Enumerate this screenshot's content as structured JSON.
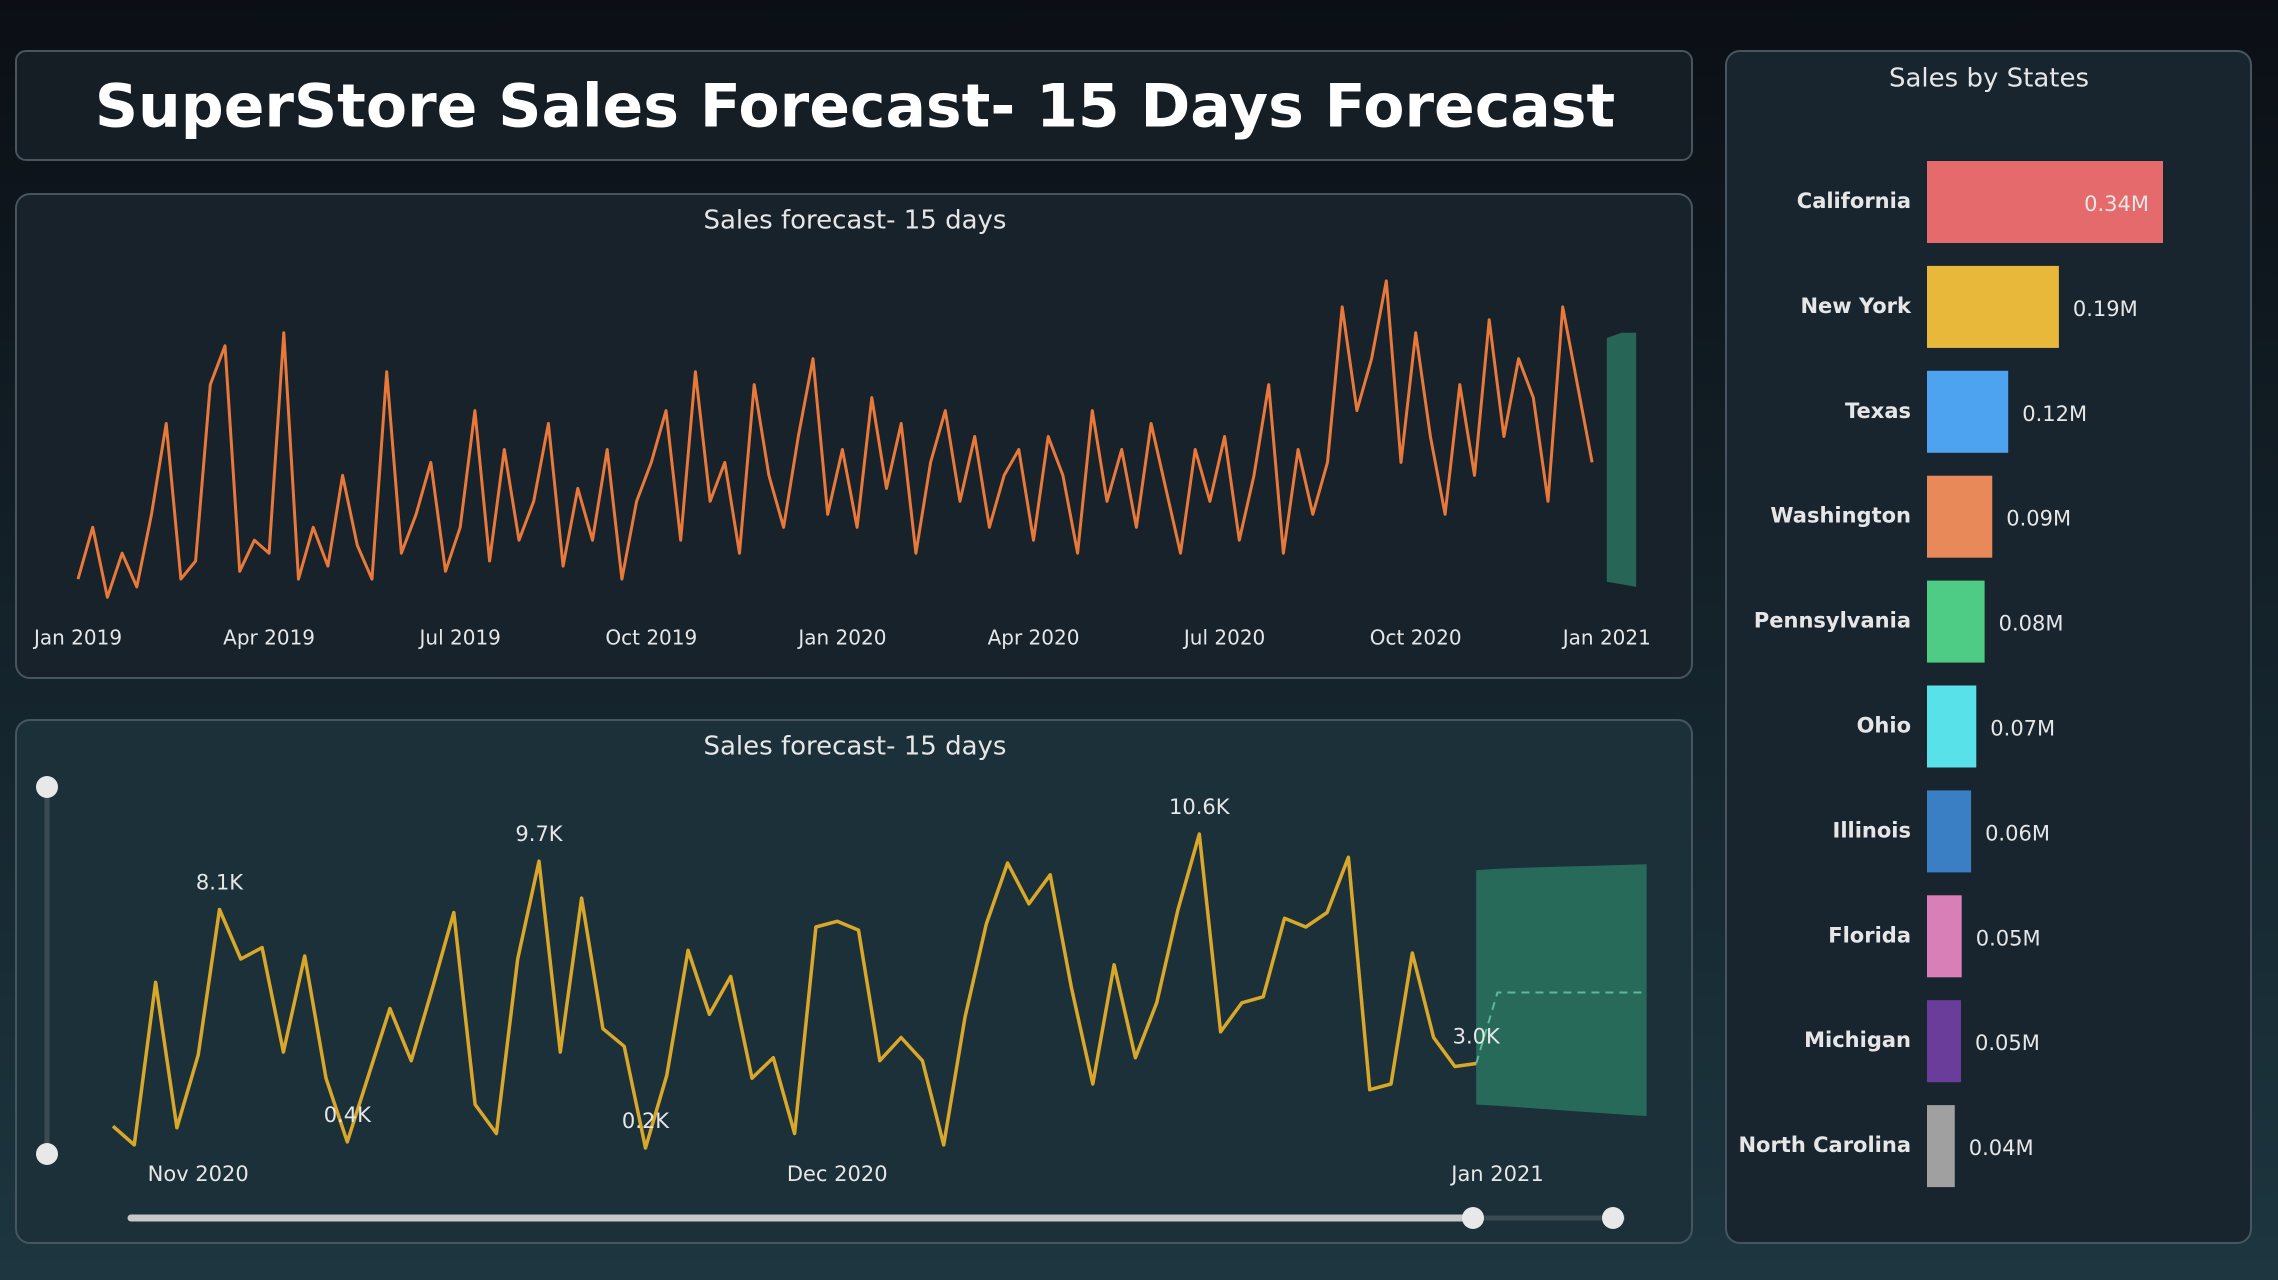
{
  "title": "SuperStore Sales Forecast- 15 Days Forecast",
  "chart_data": [
    {
      "type": "line",
      "title": "Sales forecast- 15 days",
      "categories": [
        "Jan 2019",
        null,
        null,
        null,
        null,
        null,
        null,
        null,
        null,
        null,
        null,
        null,
        null,
        "Apr 2019",
        null,
        null,
        null,
        null,
        null,
        null,
        null,
        null,
        null,
        null,
        null,
        null,
        "Jul 2019",
        null,
        null,
        null,
        null,
        null,
        null,
        null,
        null,
        null,
        null,
        null,
        null,
        "Oct 2019",
        null,
        null,
        null,
        null,
        null,
        null,
        null,
        null,
        null,
        null,
        null,
        null,
        "Jan 2020",
        null,
        null,
        null,
        null,
        null,
        null,
        null,
        null,
        null,
        null,
        null,
        null,
        "Apr 2020",
        null,
        null,
        null,
        null,
        null,
        null,
        null,
        null,
        null,
        null,
        null,
        null,
        "Jul 2020",
        null,
        null,
        null,
        null,
        null,
        null,
        null,
        null,
        null,
        null,
        null,
        null,
        "Oct 2020",
        null,
        null,
        null,
        null,
        null,
        null,
        null,
        null,
        null,
        null,
        null,
        null,
        "Jan 2021",
        null,
        null
      ],
      "ylim": [
        0,
        14000
      ],
      "series": [
        {
          "color": "#e8793a",
          "values": [
            1500,
            3500,
            800,
            2500,
            1200,
            4000,
            7500,
            1500,
            2200,
            9000,
            10500,
            1800,
            3000,
            2500,
            11000,
            1500,
            3500,
            2000,
            5500,
            2800,
            1500,
            9500,
            2500,
            4000,
            6000,
            1800,
            3500,
            8000,
            2200,
            6500,
            3000,
            4500,
            7500,
            2000,
            5000,
            3000,
            6500,
            1500,
            4500,
            6000,
            8000,
            3000,
            9500,
            4500,
            6000,
            2500,
            9000,
            5500,
            3500,
            7000,
            10000,
            4000,
            6500,
            3500,
            8500,
            5000,
            7500,
            2500,
            6000,
            8000,
            4500,
            7000,
            3500,
            5500,
            6500,
            3000,
            7000,
            5500,
            2500,
            8000,
            4500,
            6500,
            3500,
            7500,
            5000,
            2500,
            6500,
            4500,
            7000,
            3000,
            5500,
            9000,
            2500,
            6500,
            4000,
            6000,
            12000,
            8000,
            10000,
            13000,
            6000,
            11000,
            7000,
            4000,
            9000,
            5500,
            11500,
            7000,
            10000,
            8500,
            4500,
            12000,
            9000,
            6000,
            null,
            null,
            null
          ]
        }
      ],
      "forecast": {
        "color": "#2e7d66",
        "upper": [
          null,
          null,
          null,
          null,
          null,
          null,
          null,
          null,
          null,
          null,
          null,
          null,
          null,
          null,
          null,
          null,
          null,
          null,
          null,
          null,
          null,
          null,
          null,
          null,
          null,
          null,
          null,
          null,
          null,
          null,
          null,
          null,
          null,
          null,
          null,
          null,
          null,
          null,
          null,
          null,
          null,
          null,
          null,
          null,
          null,
          null,
          null,
          null,
          null,
          null,
          null,
          null,
          null,
          null,
          null,
          null,
          null,
          null,
          null,
          null,
          null,
          null,
          null,
          null,
          null,
          null,
          null,
          null,
          null,
          null,
          null,
          null,
          null,
          null,
          null,
          null,
          null,
          null,
          null,
          null,
          null,
          null,
          null,
          null,
          null,
          null,
          null,
          null,
          null,
          null,
          null,
          null,
          null,
          null,
          null,
          null,
          null,
          null,
          null,
          null,
          null,
          null,
          null,
          null,
          10800,
          11000,
          11000
        ],
        "lower": [
          null,
          null,
          null,
          null,
          null,
          null,
          null,
          null,
          null,
          null,
          null,
          null,
          null,
          null,
          null,
          null,
          null,
          null,
          null,
          null,
          null,
          null,
          null,
          null,
          null,
          null,
          null,
          null,
          null,
          null,
          null,
          null,
          null,
          null,
          null,
          null,
          null,
          null,
          null,
          null,
          null,
          null,
          null,
          null,
          null,
          null,
          null,
          null,
          null,
          null,
          null,
          null,
          null,
          null,
          null,
          null,
          null,
          null,
          null,
          null,
          null,
          null,
          null,
          null,
          null,
          null,
          null,
          null,
          null,
          null,
          null,
          null,
          null,
          null,
          null,
          null,
          null,
          null,
          null,
          null,
          null,
          null,
          null,
          null,
          null,
          null,
          null,
          null,
          null,
          null,
          null,
          null,
          null,
          null,
          null,
          null,
          null,
          null,
          null,
          null,
          null,
          null,
          null,
          null,
          1400,
          1300,
          1200
        ]
      }
    },
    {
      "type": "line",
      "title": "Sales forecast- 15 days",
      "categories": [
        null,
        null,
        null,
        null,
        "Nov 2020",
        null,
        null,
        null,
        null,
        null,
        null,
        null,
        null,
        null,
        null,
        null,
        null,
        null,
        null,
        null,
        null,
        null,
        null,
        null,
        null,
        null,
        null,
        null,
        null,
        null,
        null,
        null,
        null,
        null,
        "Dec 2020",
        null,
        null,
        null,
        null,
        null,
        null,
        null,
        null,
        null,
        null,
        null,
        null,
        null,
        null,
        null,
        null,
        null,
        null,
        null,
        null,
        null,
        null,
        null,
        null,
        null,
        null,
        null,
        null,
        null,
        null,
        "Jan 2021",
        null,
        null,
        null,
        null,
        null,
        null,
        null
      ],
      "ylim": [
        0,
        11000
      ],
      "series": [
        {
          "color": "#d9a82a",
          "values": [
            920,
            300,
            5690,
            870,
            3280,
            8100,
            6460,
            6840,
            3380,
            6560,
            2510,
            400,
            2610,
            4820,
            3090,
            5500,
            8000,
            1640,
            680,
            6460,
            9700,
            3380,
            8480,
            4150,
            3570,
            200,
            2610,
            6750,
            4630,
            5880,
            2510,
            3190,
            680,
            7520,
            7710,
            7420,
            3090,
            3860,
            3090,
            300,
            4530,
            7620,
            9640,
            8290,
            9250,
            5500,
            2320,
            6270,
            3190,
            5010,
            8100,
            10600,
            4050,
            5010,
            5210,
            7810,
            7520,
            8000,
            9830,
            2130,
            2320,
            6660,
            3860,
            2900,
            3000,
            null,
            null,
            null,
            null,
            null,
            null,
            null,
            null
          ],
          "value_labels": [
            null,
            null,
            null,
            null,
            null,
            "8.1K",
            null,
            null,
            null,
            null,
            null,
            "0.4K",
            null,
            null,
            null,
            null,
            null,
            null,
            null,
            null,
            "9.7K",
            null,
            null,
            null,
            null,
            "0.2K",
            null,
            null,
            null,
            null,
            null,
            null,
            null,
            null,
            null,
            null,
            null,
            null,
            null,
            null,
            null,
            null,
            null,
            null,
            null,
            null,
            null,
            null,
            null,
            null,
            null,
            "10.6K",
            null,
            null,
            null,
            null,
            null,
            null,
            null,
            null,
            null,
            null,
            null,
            null,
            "3.0K",
            null,
            null,
            null,
            null,
            null,
            null,
            null,
            null
          ]
        }
      ],
      "forecast": {
        "color": "#2e7d66",
        "upper": [
          null,
          null,
          null,
          null,
          null,
          null,
          null,
          null,
          null,
          null,
          null,
          null,
          null,
          null,
          null,
          null,
          null,
          null,
          null,
          null,
          null,
          null,
          null,
          null,
          null,
          null,
          null,
          null,
          null,
          null,
          null,
          null,
          null,
          null,
          null,
          null,
          null,
          null,
          null,
          null,
          null,
          null,
          null,
          null,
          null,
          null,
          null,
          null,
          null,
          null,
          null,
          null,
          null,
          null,
          null,
          null,
          null,
          null,
          null,
          null,
          null,
          null,
          null,
          null,
          9400,
          9450,
          9480,
          9500,
          9520,
          9540,
          9560,
          9580,
          9600
        ],
        "lower": [
          null,
          null,
          null,
          null,
          null,
          null,
          null,
          null,
          null,
          null,
          null,
          null,
          null,
          null,
          null,
          null,
          null,
          null,
          null,
          null,
          null,
          null,
          null,
          null,
          null,
          null,
          null,
          null,
          null,
          null,
          null,
          null,
          null,
          null,
          null,
          null,
          null,
          null,
          null,
          null,
          null,
          null,
          null,
          null,
          null,
          null,
          null,
          null,
          null,
          null,
          null,
          null,
          null,
          null,
          null,
          null,
          null,
          null,
          null,
          null,
          null,
          null,
          null,
          null,
          1640,
          1600,
          1550,
          1500,
          1450,
          1400,
          1350,
          1300,
          1260
        ],
        "values": [
          null,
          null,
          null,
          null,
          null,
          null,
          null,
          null,
          null,
          null,
          null,
          null,
          null,
          null,
          null,
          null,
          null,
          null,
          null,
          null,
          null,
          null,
          null,
          null,
          null,
          null,
          null,
          null,
          null,
          null,
          null,
          null,
          null,
          null,
          null,
          null,
          null,
          null,
          null,
          null,
          null,
          null,
          null,
          null,
          null,
          null,
          null,
          null,
          null,
          null,
          null,
          null,
          null,
          null,
          null,
          null,
          null,
          null,
          null,
          null,
          null,
          null,
          null,
          null,
          3000,
          5350,
          5350,
          5350,
          5350,
          5350,
          5350,
          5350,
          5350
        ]
      }
    },
    {
      "type": "bar",
      "orientation": "horizontal",
      "title": "Sales by States",
      "categories": [
        "California",
        "New York",
        "Texas",
        "Washington",
        "Pennsylvania",
        "Ohio",
        "Illinois",
        "Florida",
        "Michigan",
        "North Carolina"
      ],
      "values": [
        340000,
        190000,
        117000,
        94000,
        83000,
        71000,
        63500,
        50000,
        49000,
        40000
      ],
      "value_labels": [
        "0.34M",
        "0.19M",
        "0.12M",
        "0.09M",
        "0.08M",
        "0.07M",
        "0.06M",
        "0.05M",
        "0.05M",
        "0.04M"
      ],
      "colors": [
        "#e46a6c",
        "#e8b83a",
        "#4da3f0",
        "#e8895a",
        "#4ecb85",
        "#58e1e8",
        "#3a7fc4",
        "#d87fb8",
        "#6a3d9a",
        "#a0a0a0"
      ],
      "xlim": [
        0,
        340000
      ]
    }
  ]
}
